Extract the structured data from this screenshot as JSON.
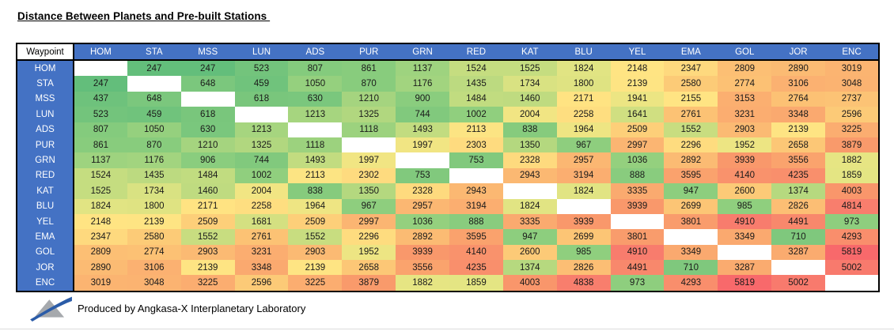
{
  "chart_data": {
    "type": "heatmap",
    "title": "Distance Between Planets and Pre-built Stations ",
    "corner_label": "Waypoint",
    "columns": [
      "HOM",
      "STA",
      "MSS",
      "LUN",
      "ADS",
      "PUR",
      "GRN",
      "RED",
      "KAT",
      "BLU",
      "YEL",
      "EMA",
      "GOL",
      "JOR",
      "ENC"
    ],
    "rows": [
      "HOM",
      "STA",
      "MSS",
      "LUN",
      "ADS",
      "PUR",
      "GRN",
      "RED",
      "KAT",
      "BLU",
      "YEL",
      "EMA",
      "GOL",
      "JOR",
      "ENC"
    ],
    "values": [
      [
        null,
        247,
        247,
        523,
        807,
        861,
        1137,
        1524,
        1525,
        1824,
        2148,
        2347,
        2809,
        2890,
        3019
      ],
      [
        247,
        null,
        648,
        459,
        1050,
        870,
        1176,
        1435,
        1734,
        1800,
        2139,
        2580,
        2774,
        3106,
        3048
      ],
      [
        437,
        648,
        null,
        618,
        630,
        1210,
        900,
        1484,
        1460,
        2171,
        1941,
        2155,
        3153,
        2764,
        2737
      ],
      [
        523,
        459,
        618,
        null,
        1213,
        1325,
        744,
        1002,
        2004,
        2258,
        1641,
        2761,
        3231,
        3348,
        2596
      ],
      [
        807,
        1050,
        630,
        1213,
        null,
        1118,
        1493,
        2113,
        838,
        1964,
        2509,
        1552,
        2903,
        2139,
        3225
      ],
      [
        861,
        870,
        1210,
        1325,
        1118,
        null,
        1997,
        2303,
        1350,
        967,
        2997,
        2296,
        1952,
        2658,
        3879
      ],
      [
        1137,
        1176,
        906,
        744,
        1493,
        1997,
        null,
        753,
        2328,
        2957,
        1036,
        2892,
        3939,
        3556,
        1882
      ],
      [
        1524,
        1435,
        1484,
        1002,
        2113,
        2302,
        753,
        null,
        2943,
        3194,
        888,
        3595,
        4140,
        4235,
        1859
      ],
      [
        1525,
        1734,
        1460,
        2004,
        838,
        1350,
        2328,
        2943,
        null,
        1824,
        3335,
        947,
        2600,
        1374,
        4003
      ],
      [
        1824,
        1800,
        2171,
        2258,
        1964,
        967,
        2957,
        3194,
        1824,
        null,
        3939,
        2699,
        985,
        2826,
        4814
      ],
      [
        2148,
        2139,
        2509,
        1681,
        2509,
        2997,
        1036,
        888,
        3335,
        3939,
        null,
        3801,
        4910,
        4491,
        973
      ],
      [
        2347,
        2580,
        1552,
        2761,
        1552,
        2296,
        2892,
        3595,
        947,
        2699,
        3801,
        null,
        3349,
        710,
        4293
      ],
      [
        2809,
        2774,
        2903,
        3231,
        2903,
        1952,
        3939,
        4140,
        2600,
        985,
        4910,
        3349,
        null,
        3287,
        5819
      ],
      [
        2890,
        3106,
        2139,
        3348,
        2139,
        2658,
        3556,
        4235,
        1374,
        2826,
        4491,
        710,
        3287,
        null,
        5002
      ],
      [
        3019,
        3048,
        3225,
        2596,
        3225,
        3879,
        1882,
        1859,
        4003,
        4838,
        973,
        4293,
        5819,
        5002,
        null
      ]
    ],
    "value_range": [
      247,
      5819
    ],
    "color_scale": {
      "blank": "#FFFFFF",
      "stops": [
        {
          "value": 247,
          "color": "#63BE7B"
        },
        {
          "value": 1000,
          "color": "#90CF7E"
        },
        {
          "value": 1500,
          "color": "#C3DC80"
        },
        {
          "value": 1880,
          "color": "#E6E583"
        },
        {
          "value": 2150,
          "color": "#FFE483"
        },
        {
          "value": 2620,
          "color": "#FCC976"
        },
        {
          "value": 3060,
          "color": "#FBB271"
        },
        {
          "value": 3900,
          "color": "#F9996B"
        },
        {
          "value": 4830,
          "color": "#F87E6D"
        },
        {
          "value": 5819,
          "color": "#F8696B"
        }
      ]
    }
  },
  "colors": {
    "header_bg": "#4472C4",
    "header_text": "#FFFFFF",
    "cell_text": "#1A1A1A",
    "border": "#000000",
    "logo_gray": "#A6A9AD",
    "logo_blue": "#2B5CA8"
  },
  "footer": {
    "text": "Produced by Angkasa-X Interplanetary Laboratory",
    "logo": "angkasa-x-logo"
  }
}
